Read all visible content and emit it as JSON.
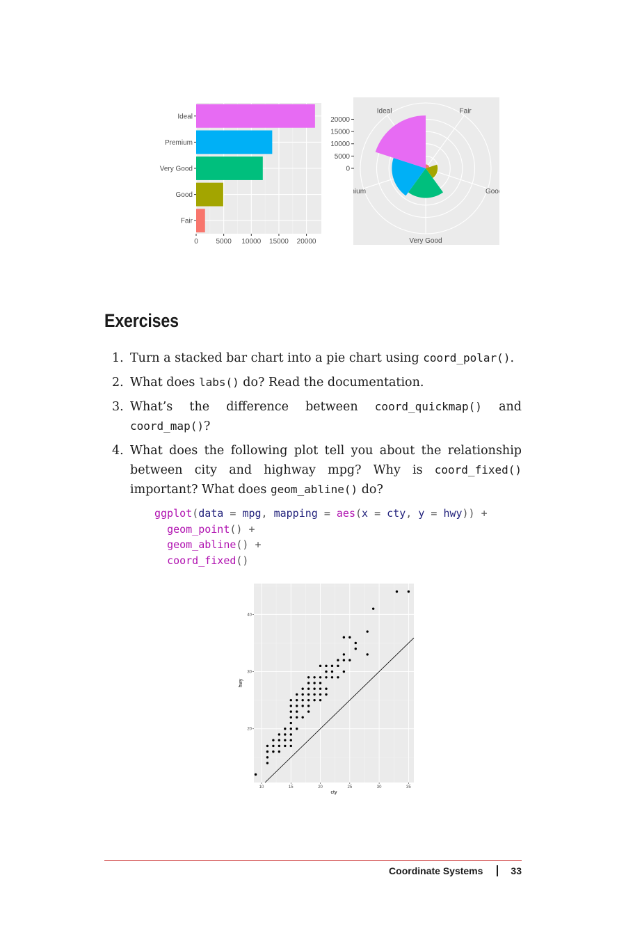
{
  "chart_data": [
    {
      "type": "bar",
      "orientation": "horizontal",
      "categories": [
        "Fair",
        "Good",
        "Very Good",
        "Premium",
        "Ideal"
      ],
      "values": [
        1610,
        4906,
        12082,
        13791,
        21551
      ],
      "colors": [
        "#F8766D",
        "#A3A500",
        "#00BF7D",
        "#00B0F6",
        "#E76BF3"
      ],
      "xticks": [
        0,
        5000,
        10000,
        15000,
        20000
      ],
      "xlim": [
        0,
        22700
      ],
      "title": "",
      "xlabel": "",
      "ylabel": ""
    },
    {
      "type": "pie",
      "variant": "coxcomb",
      "categories": [
        "Fair",
        "Good",
        "Very Good",
        "Premium",
        "Ideal"
      ],
      "values": [
        1610,
        4906,
        12082,
        13791,
        21551
      ],
      "colors": [
        "#F8766D",
        "#A3A500",
        "#00BF7D",
        "#00B0F6",
        "#E76BF3"
      ],
      "yticks": [
        0,
        5000,
        10000,
        15000,
        20000
      ],
      "rmax": 21551,
      "title": "",
      "xlabel": "",
      "ylabel": ""
    },
    {
      "type": "scatter",
      "xlabel": "cty",
      "ylabel": "hwy",
      "xticks": [
        10,
        15,
        20,
        25,
        30,
        35
      ],
      "yticks": [
        20,
        30,
        40
      ],
      "xlim": [
        8.7,
        35.9
      ],
      "ylim": [
        10.6,
        45.4
      ],
      "abline": {
        "intercept": 0,
        "slope": 1
      },
      "points": [
        [
          9,
          12
        ],
        [
          11,
          14
        ],
        [
          11,
          15
        ],
        [
          11,
          16
        ],
        [
          11,
          17
        ],
        [
          12,
          16
        ],
        [
          12,
          17
        ],
        [
          12,
          18
        ],
        [
          13,
          16
        ],
        [
          13,
          17
        ],
        [
          13,
          18
        ],
        [
          13,
          19
        ],
        [
          14,
          17
        ],
        [
          14,
          18
        ],
        [
          14,
          19
        ],
        [
          14,
          20
        ],
        [
          15,
          17
        ],
        [
          15,
          18
        ],
        [
          15,
          19
        ],
        [
          15,
          20
        ],
        [
          15,
          21
        ],
        [
          15,
          22
        ],
        [
          15,
          23
        ],
        [
          15,
          24
        ],
        [
          15,
          25
        ],
        [
          16,
          20
        ],
        [
          16,
          22
        ],
        [
          16,
          23
        ],
        [
          16,
          24
        ],
        [
          16,
          25
        ],
        [
          16,
          26
        ],
        [
          17,
          22
        ],
        [
          17,
          24
        ],
        [
          17,
          25
        ],
        [
          17,
          26
        ],
        [
          17,
          27
        ],
        [
          18,
          23
        ],
        [
          18,
          24
        ],
        [
          18,
          25
        ],
        [
          18,
          26
        ],
        [
          18,
          27
        ],
        [
          18,
          28
        ],
        [
          18,
          29
        ],
        [
          19,
          25
        ],
        [
          19,
          26
        ],
        [
          19,
          27
        ],
        [
          19,
          28
        ],
        [
          19,
          29
        ],
        [
          20,
          25
        ],
        [
          20,
          26
        ],
        [
          20,
          27
        ],
        [
          20,
          28
        ],
        [
          20,
          29
        ],
        [
          20,
          31
        ],
        [
          21,
          26
        ],
        [
          21,
          27
        ],
        [
          21,
          29
        ],
        [
          21,
          30
        ],
        [
          21,
          31
        ],
        [
          22,
          29
        ],
        [
          22,
          30
        ],
        [
          22,
          31
        ],
        [
          23,
          29
        ],
        [
          23,
          31
        ],
        [
          23,
          32
        ],
        [
          24,
          30
        ],
        [
          24,
          32
        ],
        [
          24,
          33
        ],
        [
          24,
          36
        ],
        [
          25,
          32
        ],
        [
          25,
          36
        ],
        [
          26,
          34
        ],
        [
          26,
          35
        ],
        [
          28,
          33
        ],
        [
          28,
          37
        ],
        [
          29,
          41
        ],
        [
          33,
          44
        ],
        [
          35,
          44
        ]
      ]
    }
  ],
  "exercises": {
    "heading": "Exercises",
    "items": [
      {
        "num": "1.",
        "t1": "Turn a stacked bar chart into a pie chart using ",
        "c1": "coord_polar()",
        "t2": "."
      },
      {
        "num": "2.",
        "t1": "What does ",
        "c1": "labs()",
        "t2": " do? Read the documentation."
      },
      {
        "num": "3.",
        "t1": "What’s the difference between ",
        "c1": "coord_quickmap()",
        "t2": " and ",
        "c2": "coord_map()",
        "t3": "?"
      },
      {
        "num": "4.",
        "t1": "What does the following plot tell you about the relationship between city and highway mpg? Why is ",
        "c1": "coord_fixed()",
        "t2": " important? What does ",
        "c2": "geom_abline()",
        "t3": " do?"
      }
    ]
  },
  "code": {
    "l1_fn": "ggplot",
    "l1_p1": "(",
    "l1_a": "data",
    "l1_eq1": " = ",
    "l1_b": "mpg",
    "l1_c1": ", ",
    "l1_d": "mapping",
    "l1_eq2": " = ",
    "l1_fn2": "aes",
    "l1_p2": "(",
    "l1_e": "x",
    "l1_eq3": " = ",
    "l1_f": "cty",
    "l1_c2": ", ",
    "l1_g": "y",
    "l1_eq4": " = ",
    "l1_h": "hwy",
    "l1_end": ")) +",
    "l2_fn": "geom_point",
    "l2_end": "() +",
    "l3_fn": "geom_abline",
    "l3_end": "() +",
    "l4_fn": "coord_fixed",
    "l4_end": "()"
  },
  "footer": {
    "section": "Coordinate Systems",
    "page": "33"
  }
}
